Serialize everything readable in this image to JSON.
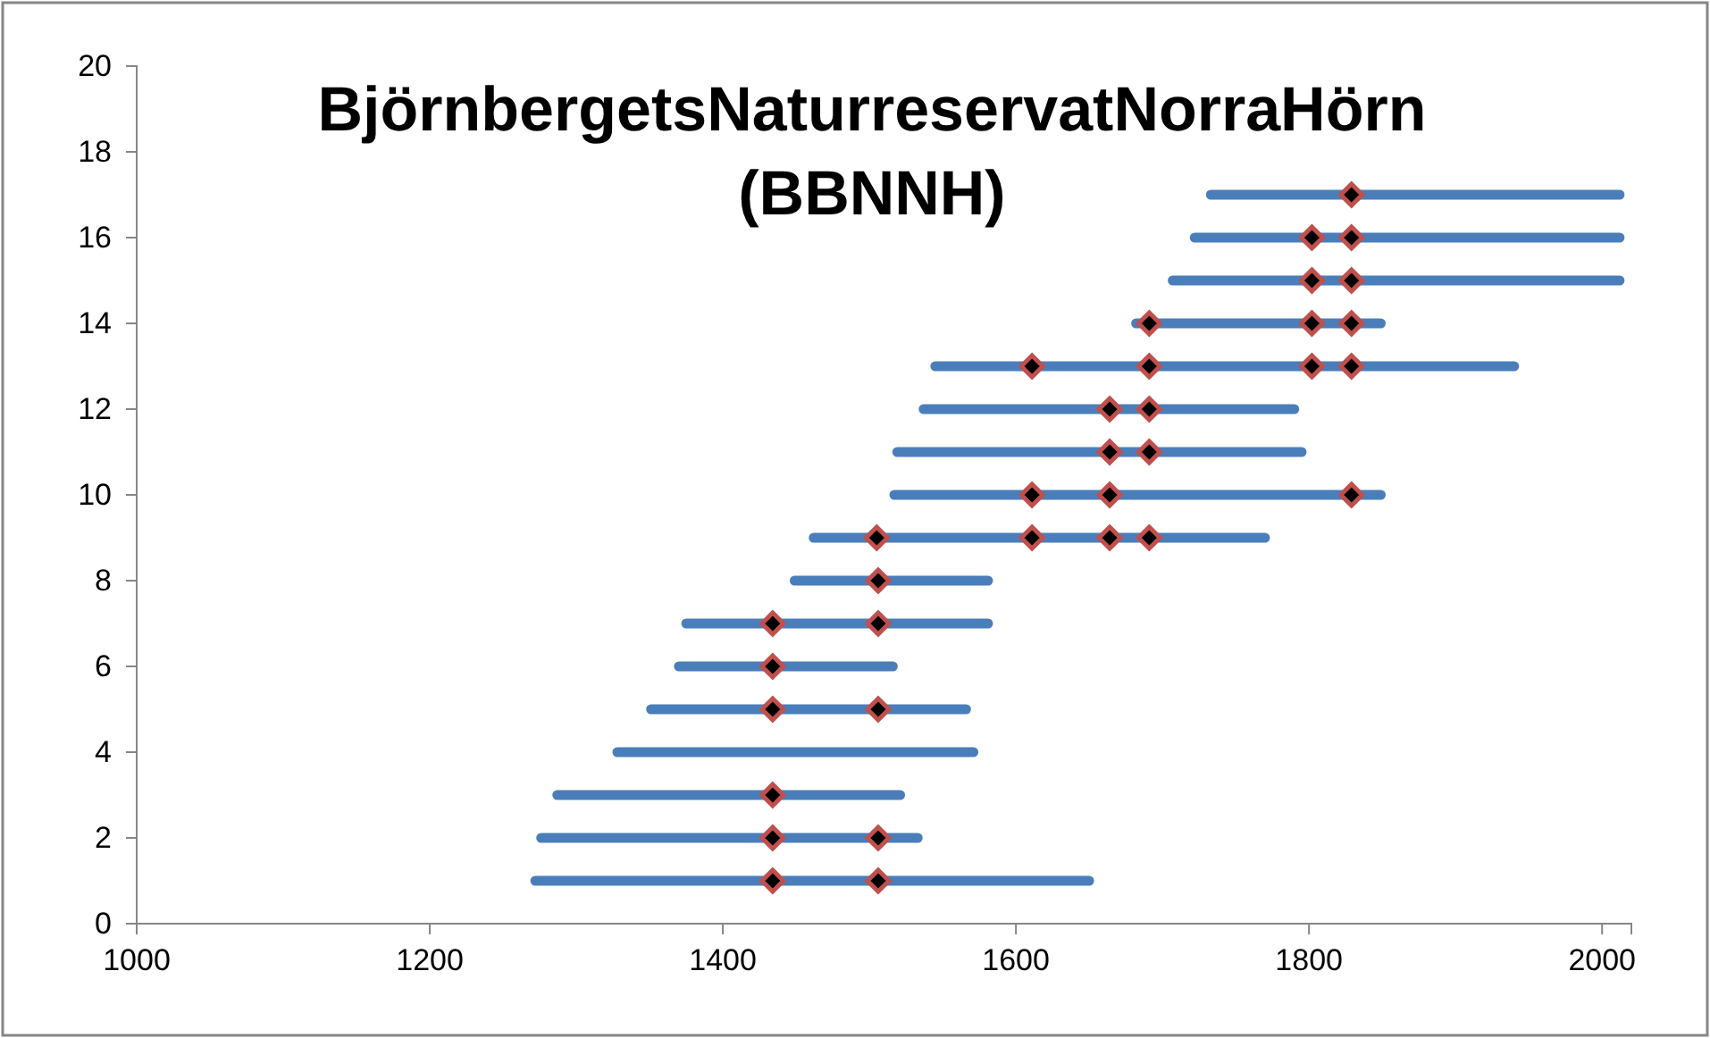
{
  "chart_data": {
    "type": "line",
    "title": "BjörnbergetsNaturreservatNorraHörn\n(BBNNH)",
    "xlim": [
      1000,
      2020
    ],
    "xticks": [
      1000,
      1200,
      1400,
      1600,
      1800,
      2000
    ],
    "ylim": [
      0,
      20
    ],
    "yticks": [
      0,
      2,
      4,
      6,
      8,
      10,
      12,
      14,
      16,
      18,
      20
    ],
    "grid": false,
    "line_style": "solid",
    "series": [
      {
        "color": "#4a7ebb",
        "x": [
          1272,
          1650
        ],
        "values": [
          1,
          1
        ]
      },
      {
        "color": "#4a7ebb",
        "x": [
          1276,
          1533
        ],
        "values": [
          2,
          2
        ]
      },
      {
        "color": "#4a7ebb",
        "x": [
          1287,
          1521
        ],
        "values": [
          3,
          3
        ]
      },
      {
        "color": "#4a7ebb",
        "x": [
          1328,
          1571
        ],
        "values": [
          4,
          4
        ]
      },
      {
        "color": "#4a7ebb",
        "x": [
          1351,
          1566
        ],
        "values": [
          5,
          5
        ]
      },
      {
        "color": "#4a7ebb",
        "x": [
          1370,
          1516
        ],
        "values": [
          6,
          6
        ]
      },
      {
        "color": "#4a7ebb",
        "x": [
          1375,
          1581
        ],
        "values": [
          7,
          7
        ]
      },
      {
        "color": "#4a7ebb",
        "x": [
          1449,
          1581
        ],
        "values": [
          8,
          8
        ]
      },
      {
        "color": "#4a7ebb",
        "x": [
          1462,
          1770
        ],
        "values": [
          9,
          9
        ]
      },
      {
        "color": "#4a7ebb",
        "x": [
          1517,
          1849
        ],
        "values": [
          10,
          10
        ]
      },
      {
        "color": "#4a7ebb",
        "x": [
          1519,
          1795
        ],
        "values": [
          11,
          11
        ]
      },
      {
        "color": "#4a7ebb",
        "x": [
          1537,
          1790
        ],
        "values": [
          12,
          12
        ]
      },
      {
        "color": "#4a7ebb",
        "x": [
          1545,
          1940
        ],
        "values": [
          13,
          13
        ]
      },
      {
        "color": "#4a7ebb",
        "x": [
          1682,
          1849
        ],
        "values": [
          14,
          14
        ]
      },
      {
        "color": "#4a7ebb",
        "x": [
          1707,
          2012
        ],
        "values": [
          15,
          15
        ]
      },
      {
        "color": "#4a7ebb",
        "x": [
          1722,
          2012
        ],
        "values": [
          16,
          16
        ]
      },
      {
        "color": "#4a7ebb",
        "x": [
          1733,
          2012
        ],
        "values": [
          17,
          17
        ]
      },
      {
        "type": "scatter",
        "marker": "diamond",
        "color": "#000000",
        "x": [
          1434,
          1506,
          1434,
          1506,
          1434,
          1434,
          1506,
          1434,
          1434,
          1506,
          1506,
          1505,
          1611,
          1664,
          1691,
          1611,
          1664,
          1829,
          1664,
          1691,
          1664,
          1691,
          1611,
          1691,
          1802,
          1829,
          1691,
          1802,
          1829,
          1802,
          1829,
          1802,
          1829,
          1829
        ],
        "values": [
          1,
          1,
          2,
          2,
          3,
          5,
          5,
          6,
          7,
          7,
          8,
          9,
          9,
          9,
          9,
          10,
          10,
          10,
          11,
          11,
          12,
          12,
          13,
          13,
          13,
          13,
          14,
          14,
          14,
          15,
          15,
          16,
          16,
          17
        ]
      }
    ]
  }
}
